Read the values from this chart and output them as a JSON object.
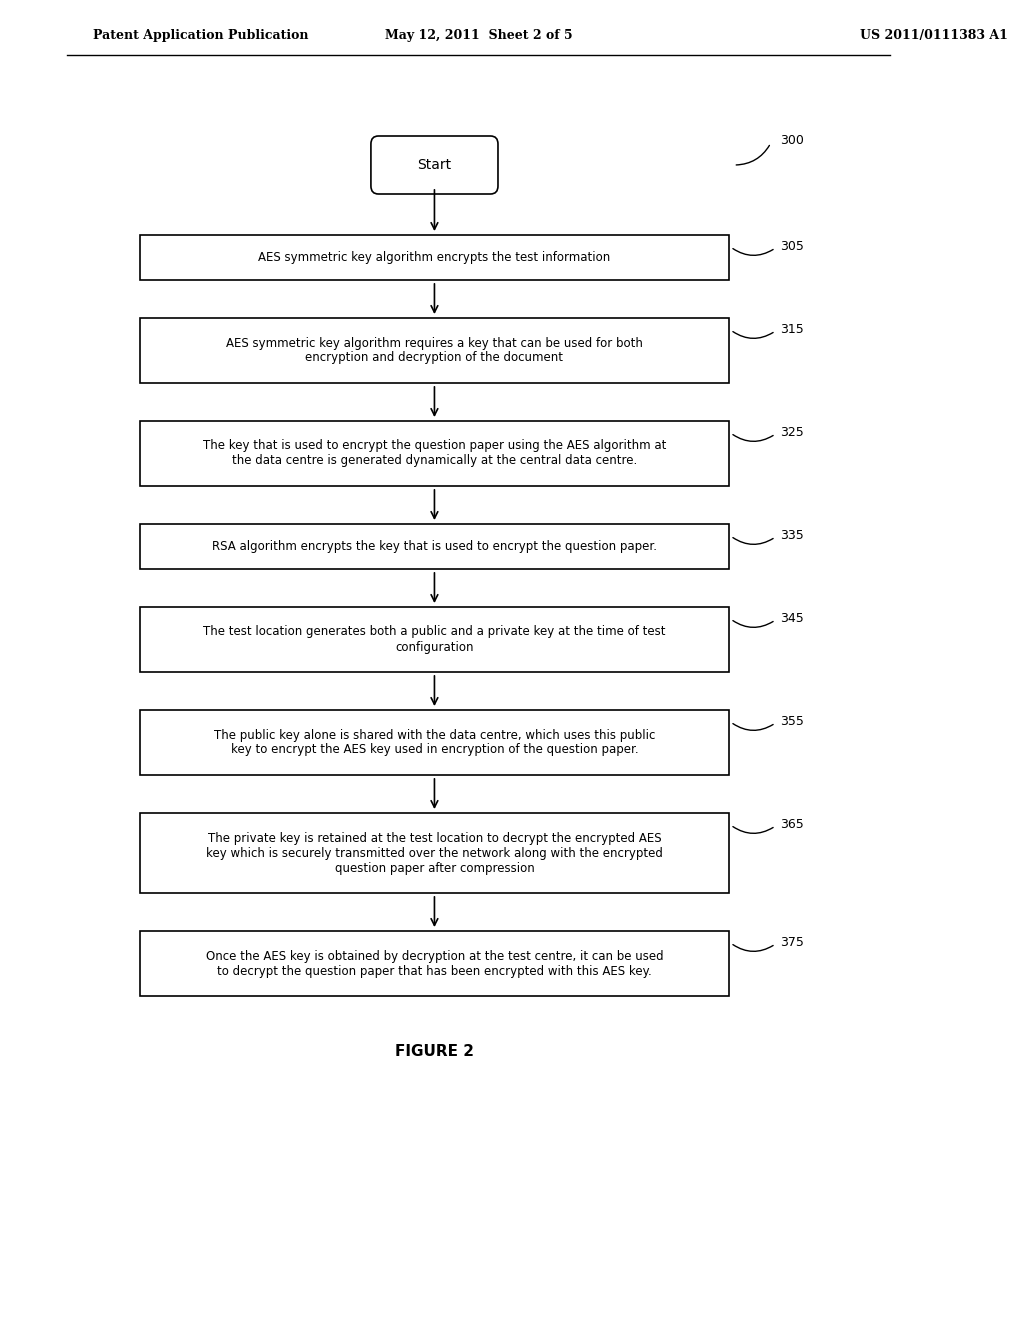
{
  "header_left": "Patent Application Publication",
  "header_mid": "May 12, 2011  Sheet 2 of 5",
  "header_right": "US 2011/0111383 A1",
  "figure_label": "FIGURE 2",
  "start_label": "Start",
  "start_ref": "300",
  "boxes": [
    {
      "ref": "305",
      "text": "AES symmetric key algorithm encrypts the test information"
    },
    {
      "ref": "315",
      "text": "AES symmetric key algorithm requires a key that can be used for both\nencryption and decryption of the document"
    },
    {
      "ref": "325",
      "text": "The key that is used to encrypt the question paper using the AES algorithm at\nthe data centre is generated dynamically at the central data centre."
    },
    {
      "ref": "335",
      "text": "RSA algorithm encrypts the key that is used to encrypt the question paper."
    },
    {
      "ref": "345",
      "text": "The test location generates both a public and a private key at the time of test\nconfiguration"
    },
    {
      "ref": "355",
      "text": "The public key alone is shared with the data centre, which uses this public\nkey to encrypt the AES key used in encryption of the question paper."
    },
    {
      "ref": "365",
      "text": "The private key is retained at the test location to decrypt the encrypted AES\nkey which is securely transmitted over the network along with the encrypted\nquestion paper after compression"
    },
    {
      "ref": "375",
      "text": "Once the AES key is obtained by decryption at the test centre, it can be used\nto decrypt the question paper that has been encrypted with this AES key."
    }
  ],
  "bg_color": "#ffffff",
  "box_edge_color": "#000000",
  "text_color": "#000000",
  "arrow_color": "#000000"
}
